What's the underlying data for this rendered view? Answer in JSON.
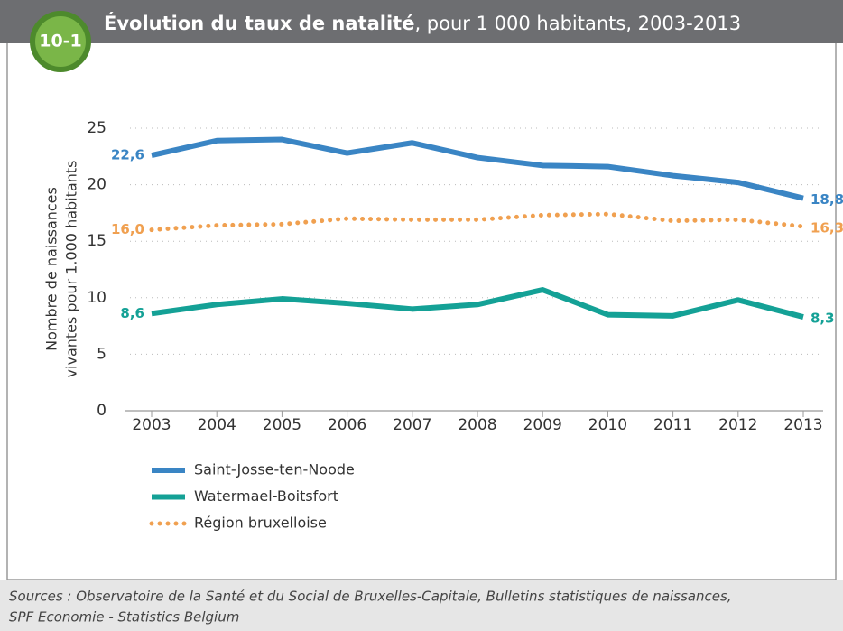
{
  "badge": "10-1",
  "chart_data": {
    "type": "line",
    "title_bold": "Évolution du taux de natalité",
    "title_rest": ", pour 1 000 habitants, 2003-2013",
    "ylabel": [
      "Nombre de naissances",
      "vivantes pour 1.000 habitants"
    ],
    "categories": [
      "2003",
      "2004",
      "2005",
      "2006",
      "2007",
      "2008",
      "2009",
      "2010",
      "2011",
      "2012",
      "2013"
    ],
    "series": [
      {
        "name": "Saint-Josse-ten-Noode",
        "color": "#3a85c4",
        "style": "solid",
        "values": [
          22.6,
          23.9,
          24.0,
          22.8,
          23.7,
          22.4,
          21.7,
          21.6,
          20.8,
          20.2,
          18.8
        ],
        "value_labels": [
          "22,6",
          null,
          null,
          null,
          null,
          null,
          null,
          null,
          null,
          null,
          "18,8"
        ]
      },
      {
        "name": "Watermael-Boitsfort",
        "color": "#14a196",
        "style": "solid",
        "values": [
          8.6,
          9.4,
          9.9,
          9.5,
          9.0,
          9.4,
          10.7,
          8.5,
          8.4,
          9.8,
          8.3
        ],
        "value_labels": [
          "8,6",
          null,
          null,
          null,
          null,
          null,
          null,
          null,
          null,
          null,
          "8,3"
        ]
      },
      {
        "name": "Région bruxelloise",
        "color": "#f0a050",
        "style": "dotted",
        "values": [
          16.0,
          16.4,
          16.5,
          17.0,
          16.9,
          16.9,
          17.3,
          17.4,
          16.8,
          16.9,
          16.3
        ],
        "value_labels": [
          "16,0",
          null,
          null,
          null,
          null,
          null,
          null,
          null,
          null,
          null,
          "16,3"
        ]
      }
    ],
    "ylim": [
      0,
      25
    ],
    "yticks": [
      0,
      5,
      10,
      15,
      20,
      25
    ],
    "grid": true
  },
  "source": [
    "Sources : Observatoire de la Santé et du Social de Bruxelles-Capitale, Bulletins statistiques de naissances,",
    "SPF Economie - Statistics Belgium"
  ]
}
